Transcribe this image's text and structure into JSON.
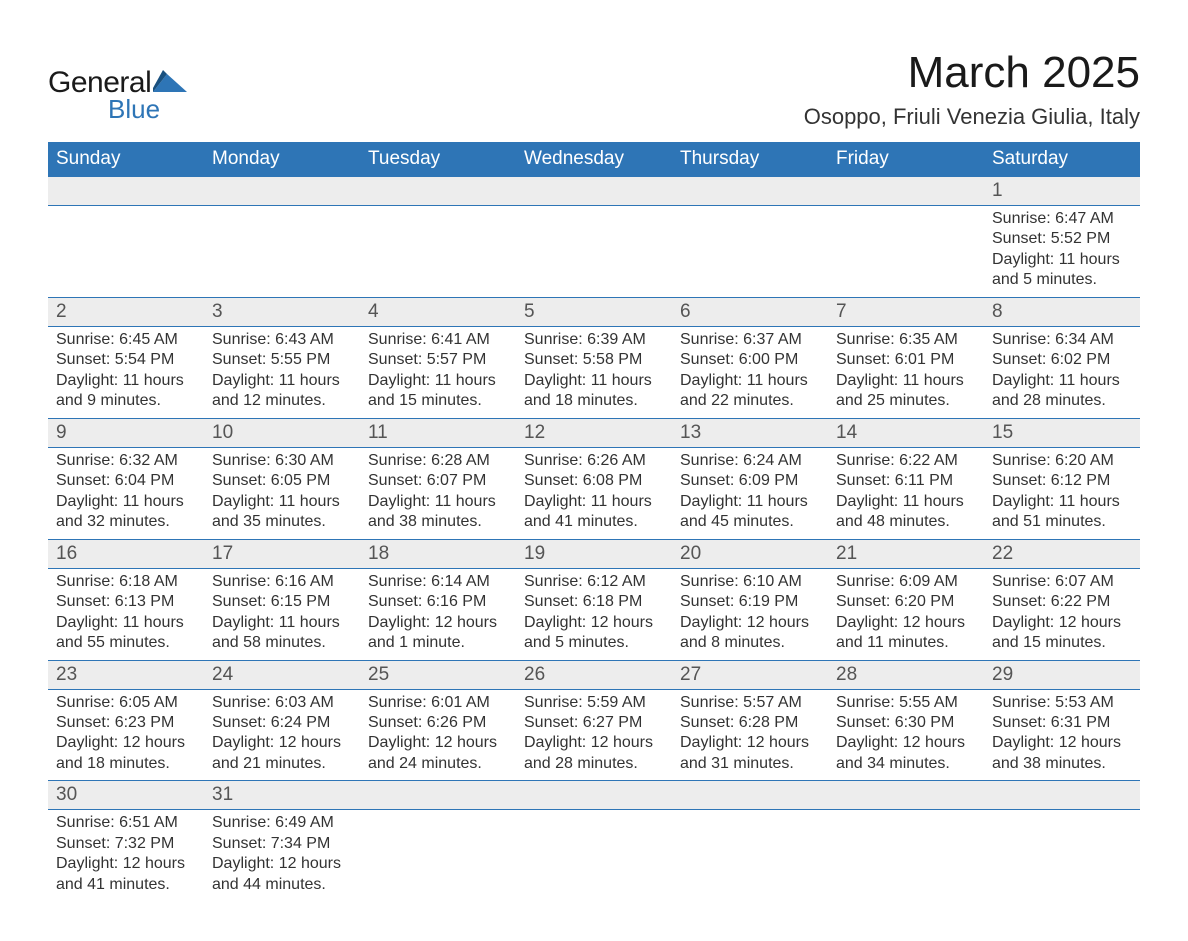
{
  "logo": {
    "word1": "General",
    "word2": "Blue"
  },
  "title": "March 2025",
  "location": "Osoppo, Friuli Venezia Giulia, Italy",
  "colors": {
    "header_bg": "#2e75b6",
    "header_text": "#ffffff",
    "daynum_bg": "#ededed",
    "row_border": "#2e75b6",
    "body_text": "#333333",
    "logo_dark": "#1a1a1a",
    "logo_accent": "#2e75b6"
  },
  "weekdays": [
    "Sunday",
    "Monday",
    "Tuesday",
    "Wednesday",
    "Thursday",
    "Friday",
    "Saturday"
  ],
  "weeks": [
    [
      null,
      null,
      null,
      null,
      null,
      null,
      {
        "n": "1",
        "sunrise": "Sunrise: 6:47 AM",
        "sunset": "Sunset: 5:52 PM",
        "dl1": "Daylight: 11 hours",
        "dl2": "and 5 minutes."
      }
    ],
    [
      {
        "n": "2",
        "sunrise": "Sunrise: 6:45 AM",
        "sunset": "Sunset: 5:54 PM",
        "dl1": "Daylight: 11 hours",
        "dl2": "and 9 minutes."
      },
      {
        "n": "3",
        "sunrise": "Sunrise: 6:43 AM",
        "sunset": "Sunset: 5:55 PM",
        "dl1": "Daylight: 11 hours",
        "dl2": "and 12 minutes."
      },
      {
        "n": "4",
        "sunrise": "Sunrise: 6:41 AM",
        "sunset": "Sunset: 5:57 PM",
        "dl1": "Daylight: 11 hours",
        "dl2": "and 15 minutes."
      },
      {
        "n": "5",
        "sunrise": "Sunrise: 6:39 AM",
        "sunset": "Sunset: 5:58 PM",
        "dl1": "Daylight: 11 hours",
        "dl2": "and 18 minutes."
      },
      {
        "n": "6",
        "sunrise": "Sunrise: 6:37 AM",
        "sunset": "Sunset: 6:00 PM",
        "dl1": "Daylight: 11 hours",
        "dl2": "and 22 minutes."
      },
      {
        "n": "7",
        "sunrise": "Sunrise: 6:35 AM",
        "sunset": "Sunset: 6:01 PM",
        "dl1": "Daylight: 11 hours",
        "dl2": "and 25 minutes."
      },
      {
        "n": "8",
        "sunrise": "Sunrise: 6:34 AM",
        "sunset": "Sunset: 6:02 PM",
        "dl1": "Daylight: 11 hours",
        "dl2": "and 28 minutes."
      }
    ],
    [
      {
        "n": "9",
        "sunrise": "Sunrise: 6:32 AM",
        "sunset": "Sunset: 6:04 PM",
        "dl1": "Daylight: 11 hours",
        "dl2": "and 32 minutes."
      },
      {
        "n": "10",
        "sunrise": "Sunrise: 6:30 AM",
        "sunset": "Sunset: 6:05 PM",
        "dl1": "Daylight: 11 hours",
        "dl2": "and 35 minutes."
      },
      {
        "n": "11",
        "sunrise": "Sunrise: 6:28 AM",
        "sunset": "Sunset: 6:07 PM",
        "dl1": "Daylight: 11 hours",
        "dl2": "and 38 minutes."
      },
      {
        "n": "12",
        "sunrise": "Sunrise: 6:26 AM",
        "sunset": "Sunset: 6:08 PM",
        "dl1": "Daylight: 11 hours",
        "dl2": "and 41 minutes."
      },
      {
        "n": "13",
        "sunrise": "Sunrise: 6:24 AM",
        "sunset": "Sunset: 6:09 PM",
        "dl1": "Daylight: 11 hours",
        "dl2": "and 45 minutes."
      },
      {
        "n": "14",
        "sunrise": "Sunrise: 6:22 AM",
        "sunset": "Sunset: 6:11 PM",
        "dl1": "Daylight: 11 hours",
        "dl2": "and 48 minutes."
      },
      {
        "n": "15",
        "sunrise": "Sunrise: 6:20 AM",
        "sunset": "Sunset: 6:12 PM",
        "dl1": "Daylight: 11 hours",
        "dl2": "and 51 minutes."
      }
    ],
    [
      {
        "n": "16",
        "sunrise": "Sunrise: 6:18 AM",
        "sunset": "Sunset: 6:13 PM",
        "dl1": "Daylight: 11 hours",
        "dl2": "and 55 minutes."
      },
      {
        "n": "17",
        "sunrise": "Sunrise: 6:16 AM",
        "sunset": "Sunset: 6:15 PM",
        "dl1": "Daylight: 11 hours",
        "dl2": "and 58 minutes."
      },
      {
        "n": "18",
        "sunrise": "Sunrise: 6:14 AM",
        "sunset": "Sunset: 6:16 PM",
        "dl1": "Daylight: 12 hours",
        "dl2": "and 1 minute."
      },
      {
        "n": "19",
        "sunrise": "Sunrise: 6:12 AM",
        "sunset": "Sunset: 6:18 PM",
        "dl1": "Daylight: 12 hours",
        "dl2": "and 5 minutes."
      },
      {
        "n": "20",
        "sunrise": "Sunrise: 6:10 AM",
        "sunset": "Sunset: 6:19 PM",
        "dl1": "Daylight: 12 hours",
        "dl2": "and 8 minutes."
      },
      {
        "n": "21",
        "sunrise": "Sunrise: 6:09 AM",
        "sunset": "Sunset: 6:20 PM",
        "dl1": "Daylight: 12 hours",
        "dl2": "and 11 minutes."
      },
      {
        "n": "22",
        "sunrise": "Sunrise: 6:07 AM",
        "sunset": "Sunset: 6:22 PM",
        "dl1": "Daylight: 12 hours",
        "dl2": "and 15 minutes."
      }
    ],
    [
      {
        "n": "23",
        "sunrise": "Sunrise: 6:05 AM",
        "sunset": "Sunset: 6:23 PM",
        "dl1": "Daylight: 12 hours",
        "dl2": "and 18 minutes."
      },
      {
        "n": "24",
        "sunrise": "Sunrise: 6:03 AM",
        "sunset": "Sunset: 6:24 PM",
        "dl1": "Daylight: 12 hours",
        "dl2": "and 21 minutes."
      },
      {
        "n": "25",
        "sunrise": "Sunrise: 6:01 AM",
        "sunset": "Sunset: 6:26 PM",
        "dl1": "Daylight: 12 hours",
        "dl2": "and 24 minutes."
      },
      {
        "n": "26",
        "sunrise": "Sunrise: 5:59 AM",
        "sunset": "Sunset: 6:27 PM",
        "dl1": "Daylight: 12 hours",
        "dl2": "and 28 minutes."
      },
      {
        "n": "27",
        "sunrise": "Sunrise: 5:57 AM",
        "sunset": "Sunset: 6:28 PM",
        "dl1": "Daylight: 12 hours",
        "dl2": "and 31 minutes."
      },
      {
        "n": "28",
        "sunrise": "Sunrise: 5:55 AM",
        "sunset": "Sunset: 6:30 PM",
        "dl1": "Daylight: 12 hours",
        "dl2": "and 34 minutes."
      },
      {
        "n": "29",
        "sunrise": "Sunrise: 5:53 AM",
        "sunset": "Sunset: 6:31 PM",
        "dl1": "Daylight: 12 hours",
        "dl2": "and 38 minutes."
      }
    ],
    [
      {
        "n": "30",
        "sunrise": "Sunrise: 6:51 AM",
        "sunset": "Sunset: 7:32 PM",
        "dl1": "Daylight: 12 hours",
        "dl2": "and 41 minutes."
      },
      {
        "n": "31",
        "sunrise": "Sunrise: 6:49 AM",
        "sunset": "Sunset: 7:34 PM",
        "dl1": "Daylight: 12 hours",
        "dl2": "and 44 minutes."
      },
      null,
      null,
      null,
      null,
      null
    ]
  ]
}
